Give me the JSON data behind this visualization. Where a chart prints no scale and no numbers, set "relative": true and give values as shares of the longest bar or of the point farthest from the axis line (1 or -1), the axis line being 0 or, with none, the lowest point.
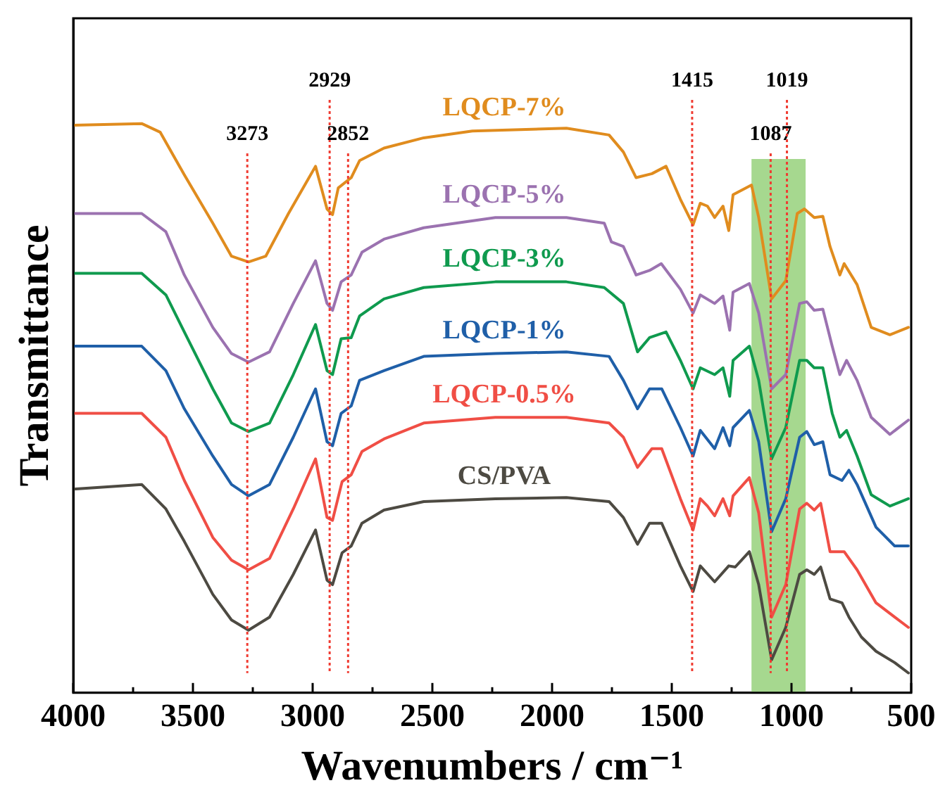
{
  "chart_data": {
    "type": "line",
    "relative": true,
    "xlabel": "Wavenumbers / cm⁻¹",
    "ylabel": "Transmittance",
    "xlim": [
      4000,
      500
    ],
    "xticks": [
      4000,
      {
        "value": 3750,
        "label": null
      },
      3500,
      {
        "value": 3250,
        "label": null
      },
      3000,
      {
        "value": 2750,
        "label": null
      },
      2500,
      {
        "value": 2250,
        "label": null
      },
      2000,
      {
        "value": 1750,
        "label": null
      },
      1500,
      {
        "value": 1250,
        "label": null
      },
      1000,
      {
        "value": 750,
        "label": null
      },
      500
    ],
    "grid": false,
    "legend": false,
    "marker": "none",
    "line_style": "solid",
    "series": [
      {
        "name": "LQCP-7%",
        "color": "#e08c1e",
        "x": [
          4000,
          3714,
          3637,
          3536,
          3417,
          3339,
          3268,
          3196,
          3101,
          2988,
          2940,
          2917,
          2893,
          2839,
          2804,
          2702,
          2536,
          2333,
          1940,
          1762,
          1702,
          1649,
          1583,
          1524,
          1464,
          1411,
          1381,
          1351,
          1321,
          1286,
          1262,
          1244,
          1167,
          1137,
          1083,
          1024,
          976,
          946,
          905,
          869,
          839,
          798,
          780,
          726,
          667,
          589,
          512
        ],
        "values": [
          0.997,
          1.0,
          0.985,
          0.91,
          0.825,
          0.767,
          0.757,
          0.767,
          0.842,
          0.925,
          0.85,
          0.84,
          0.887,
          0.905,
          0.935,
          0.957,
          0.975,
          0.987,
          0.992,
          0.98,
          0.95,
          0.905,
          0.912,
          0.925,
          0.867,
          0.822,
          0.86,
          0.855,
          0.835,
          0.855,
          0.812,
          0.875,
          0.892,
          0.835,
          0.692,
          0.724,
          0.842,
          0.85,
          0.835,
          0.837,
          0.784,
          0.734,
          0.754,
          0.717,
          0.642,
          0.629,
          0.642
        ]
      },
      {
        "name": "LQCP-5%",
        "color": "#9b72b0",
        "x": [
          4000,
          3714,
          3613,
          3536,
          3417,
          3339,
          3268,
          3180,
          3081,
          2988,
          2940,
          2917,
          2881,
          2839,
          2794,
          2702,
          2536,
          2237,
          1940,
          1782,
          1752,
          1702,
          1649,
          1593,
          1544,
          1464,
          1411,
          1381,
          1321,
          1286,
          1258,
          1244,
          1176,
          1137,
          1083,
          1024,
          966,
          936,
          905,
          869,
          830,
          798,
          770,
          726,
          667,
          589,
          512
        ],
        "values": [
          0.842,
          0.842,
          0.81,
          0.734,
          0.642,
          0.596,
          0.581,
          0.599,
          0.684,
          0.759,
          0.684,
          0.672,
          0.722,
          0.734,
          0.774,
          0.797,
          0.817,
          0.835,
          0.835,
          0.825,
          0.792,
          0.784,
          0.734,
          0.742,
          0.754,
          0.709,
          0.667,
          0.699,
          0.684,
          0.697,
          0.637,
          0.704,
          0.719,
          0.667,
          0.534,
          0.559,
          0.684,
          0.687,
          0.672,
          0.674,
          0.609,
          0.559,
          0.584,
          0.549,
          0.484,
          0.454,
          0.479
        ]
      },
      {
        "name": "LQCP-3%",
        "color": "#0f9a4e",
        "x": [
          4000,
          3714,
          3613,
          3536,
          3417,
          3339,
          3268,
          3180,
          3081,
          2988,
          2940,
          2917,
          2881,
          2839,
          2804,
          2702,
          2536,
          2237,
          1940,
          1782,
          1702,
          1643,
          1593,
          1524,
          1464,
          1411,
          1381,
          1321,
          1286,
          1258,
          1244,
          1176,
          1137,
          1083,
          1024,
          966,
          936,
          905,
          869,
          830,
          798,
          770,
          726,
          667,
          589,
          512
        ],
        "values": [
          0.737,
          0.737,
          0.699,
          0.634,
          0.534,
          0.474,
          0.459,
          0.474,
          0.559,
          0.647,
          0.566,
          0.559,
          0.622,
          0.624,
          0.662,
          0.692,
          0.712,
          0.722,
          0.722,
          0.712,
          0.684,
          0.599,
          0.624,
          0.634,
          0.584,
          0.534,
          0.571,
          0.559,
          0.571,
          0.521,
          0.584,
          0.609,
          0.549,
          0.411,
          0.466,
          0.584,
          0.584,
          0.571,
          0.571,
          0.491,
          0.449,
          0.461,
          0.416,
          0.348,
          0.328,
          0.341
        ]
      },
      {
        "name": "LQCP-1%",
        "color": "#1f5fa8",
        "x": [
          4000,
          3714,
          3613,
          3536,
          3417,
          3339,
          3268,
          3180,
          3081,
          2988,
          2940,
          2917,
          2881,
          2839,
          2804,
          2702,
          2536,
          2237,
          1940,
          1762,
          1702,
          1643,
          1593,
          1542,
          1464,
          1411,
          1381,
          1321,
          1286,
          1258,
          1244,
          1176,
          1137,
          1083,
          1024,
          966,
          936,
          905,
          869,
          839,
          789,
          760,
          726,
          647,
          569,
          512
        ],
        "values": [
          0.609,
          0.609,
          0.566,
          0.499,
          0.416,
          0.366,
          0.346,
          0.366,
          0.449,
          0.534,
          0.441,
          0.434,
          0.491,
          0.504,
          0.549,
          0.566,
          0.591,
          0.596,
          0.599,
          0.591,
          0.549,
          0.499,
          0.534,
          0.534,
          0.466,
          0.416,
          0.461,
          0.429,
          0.466,
          0.434,
          0.466,
          0.496,
          0.441,
          0.283,
          0.341,
          0.449,
          0.459,
          0.436,
          0.441,
          0.383,
          0.373,
          0.391,
          0.366,
          0.291,
          0.258,
          0.258
        ]
      },
      {
        "name": "LQCP-0.5%",
        "color": "#f04e45",
        "x": [
          4000,
          3714,
          3613,
          3536,
          3417,
          3339,
          3268,
          3180,
          3081,
          2988,
          2940,
          2917,
          2877,
          2839,
          2794,
          2702,
          2536,
          2237,
          1940,
          1762,
          1702,
          1643,
          1583,
          1542,
          1464,
          1411,
          1381,
          1351,
          1321,
          1286,
          1258,
          1244,
          1176,
          1137,
          1083,
          1024,
          966,
          936,
          905,
          878,
          839,
          780,
          726,
          647,
          569,
          512
        ],
        "values": [
          0.491,
          0.491,
          0.449,
          0.373,
          0.273,
          0.233,
          0.216,
          0.236,
          0.323,
          0.411,
          0.308,
          0.303,
          0.371,
          0.383,
          0.424,
          0.446,
          0.474,
          0.484,
          0.484,
          0.474,
          0.449,
          0.396,
          0.429,
          0.429,
          0.341,
          0.286,
          0.341,
          0.328,
          0.311,
          0.341,
          0.311,
          0.346,
          0.378,
          0.316,
          0.133,
          0.19,
          0.323,
          0.333,
          0.321,
          0.333,
          0.248,
          0.248,
          0.216,
          0.158,
          0.133,
          0.115
        ]
      },
      {
        "name": "CS/PVA",
        "color": "#4d4a42",
        "x": [
          4000,
          3714,
          3613,
          3536,
          3417,
          3339,
          3268,
          3180,
          3081,
          2988,
          2940,
          2917,
          2877,
          2839,
          2794,
          2702,
          2536,
          2237,
          1940,
          1762,
          1702,
          1643,
          1593,
          1542,
          1464,
          1411,
          1381,
          1321,
          1262,
          1235,
          1176,
          1137,
          1083,
          1024,
          966,
          936,
          905,
          878,
          839,
          789,
          760,
          708,
          647,
          569,
          512
        ],
        "values": [
          0.358,
          0.366,
          0.323,
          0.266,
          0.173,
          0.128,
          0.11,
          0.133,
          0.208,
          0.286,
          0.198,
          0.19,
          0.246,
          0.258,
          0.298,
          0.321,
          0.336,
          0.341,
          0.343,
          0.336,
          0.308,
          0.261,
          0.298,
          0.298,
          0.223,
          0.178,
          0.223,
          0.195,
          0.223,
          0.221,
          0.248,
          0.19,
          0.058,
          0.115,
          0.208,
          0.216,
          0.208,
          0.221,
          0.165,
          0.158,
          0.133,
          0.098,
          0.073,
          0.053,
          0.035
        ]
      }
    ],
    "ref_lines": [
      {
        "axis": "x",
        "value": 3273,
        "label": "3273",
        "color": "#f03c32",
        "line_style": "dotted"
      },
      {
        "axis": "x",
        "value": 2929,
        "label": "2929",
        "color": "#f03c32",
        "line_style": "dotted"
      },
      {
        "axis": "x",
        "value": 2852,
        "label": "2852",
        "color": "#f03c32",
        "line_style": "dotted"
      },
      {
        "axis": "x",
        "value": 1415,
        "label": "1415",
        "color": "#f03c32",
        "line_style": "dotted"
      },
      {
        "axis": "x",
        "value": 1087,
        "label": "1087",
        "color": "#f03c32",
        "line_style": "dotted"
      },
      {
        "axis": "x",
        "value": 1019,
        "label": "1019",
        "color": "#f03c32",
        "line_style": "dotted"
      }
    ],
    "bands": [
      {
        "axis": "x",
        "from": 1167,
        "to": 941,
        "color": "#a6d88f"
      }
    ]
  }
}
